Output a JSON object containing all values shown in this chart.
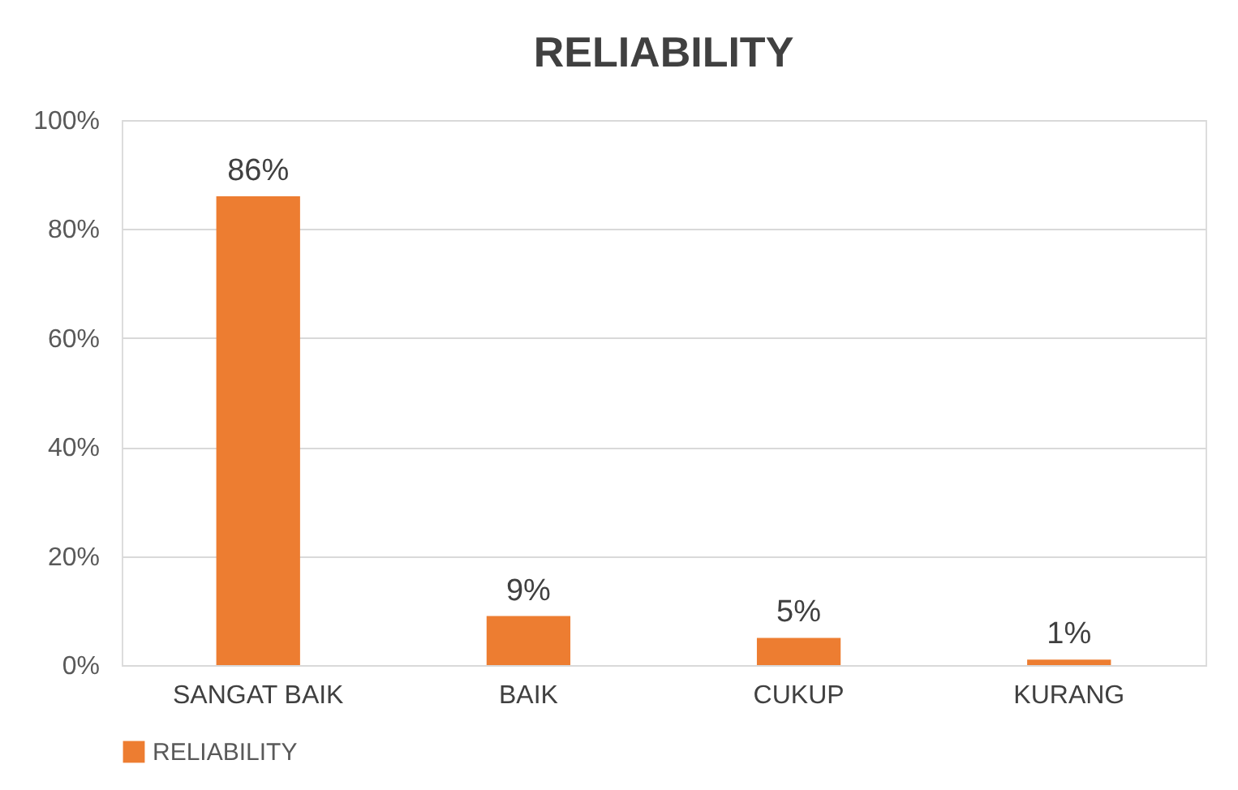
{
  "chart_data": {
    "type": "bar",
    "title": "RELIABILITY",
    "categories": [
      "SANGAT BAIK",
      "BAIK",
      "CUKUP",
      "KURANG"
    ],
    "series": [
      {
        "name": "RELIABILITY",
        "color": "#ed7d31",
        "values": [
          86,
          9,
          5,
          1
        ],
        "value_labels": [
          "86%",
          "9%",
          "5%",
          "1%"
        ]
      }
    ],
    "ylim": [
      0,
      100
    ],
    "yticks": [
      {
        "value": 0,
        "label": "0%"
      },
      {
        "value": 20,
        "label": "20%"
      },
      {
        "value": 40,
        "label": "40%"
      },
      {
        "value": 60,
        "label": "60%"
      },
      {
        "value": 80,
        "label": "80%"
      },
      {
        "value": 100,
        "label": "100%"
      }
    ],
    "grid": "y",
    "legend": "bottom"
  }
}
